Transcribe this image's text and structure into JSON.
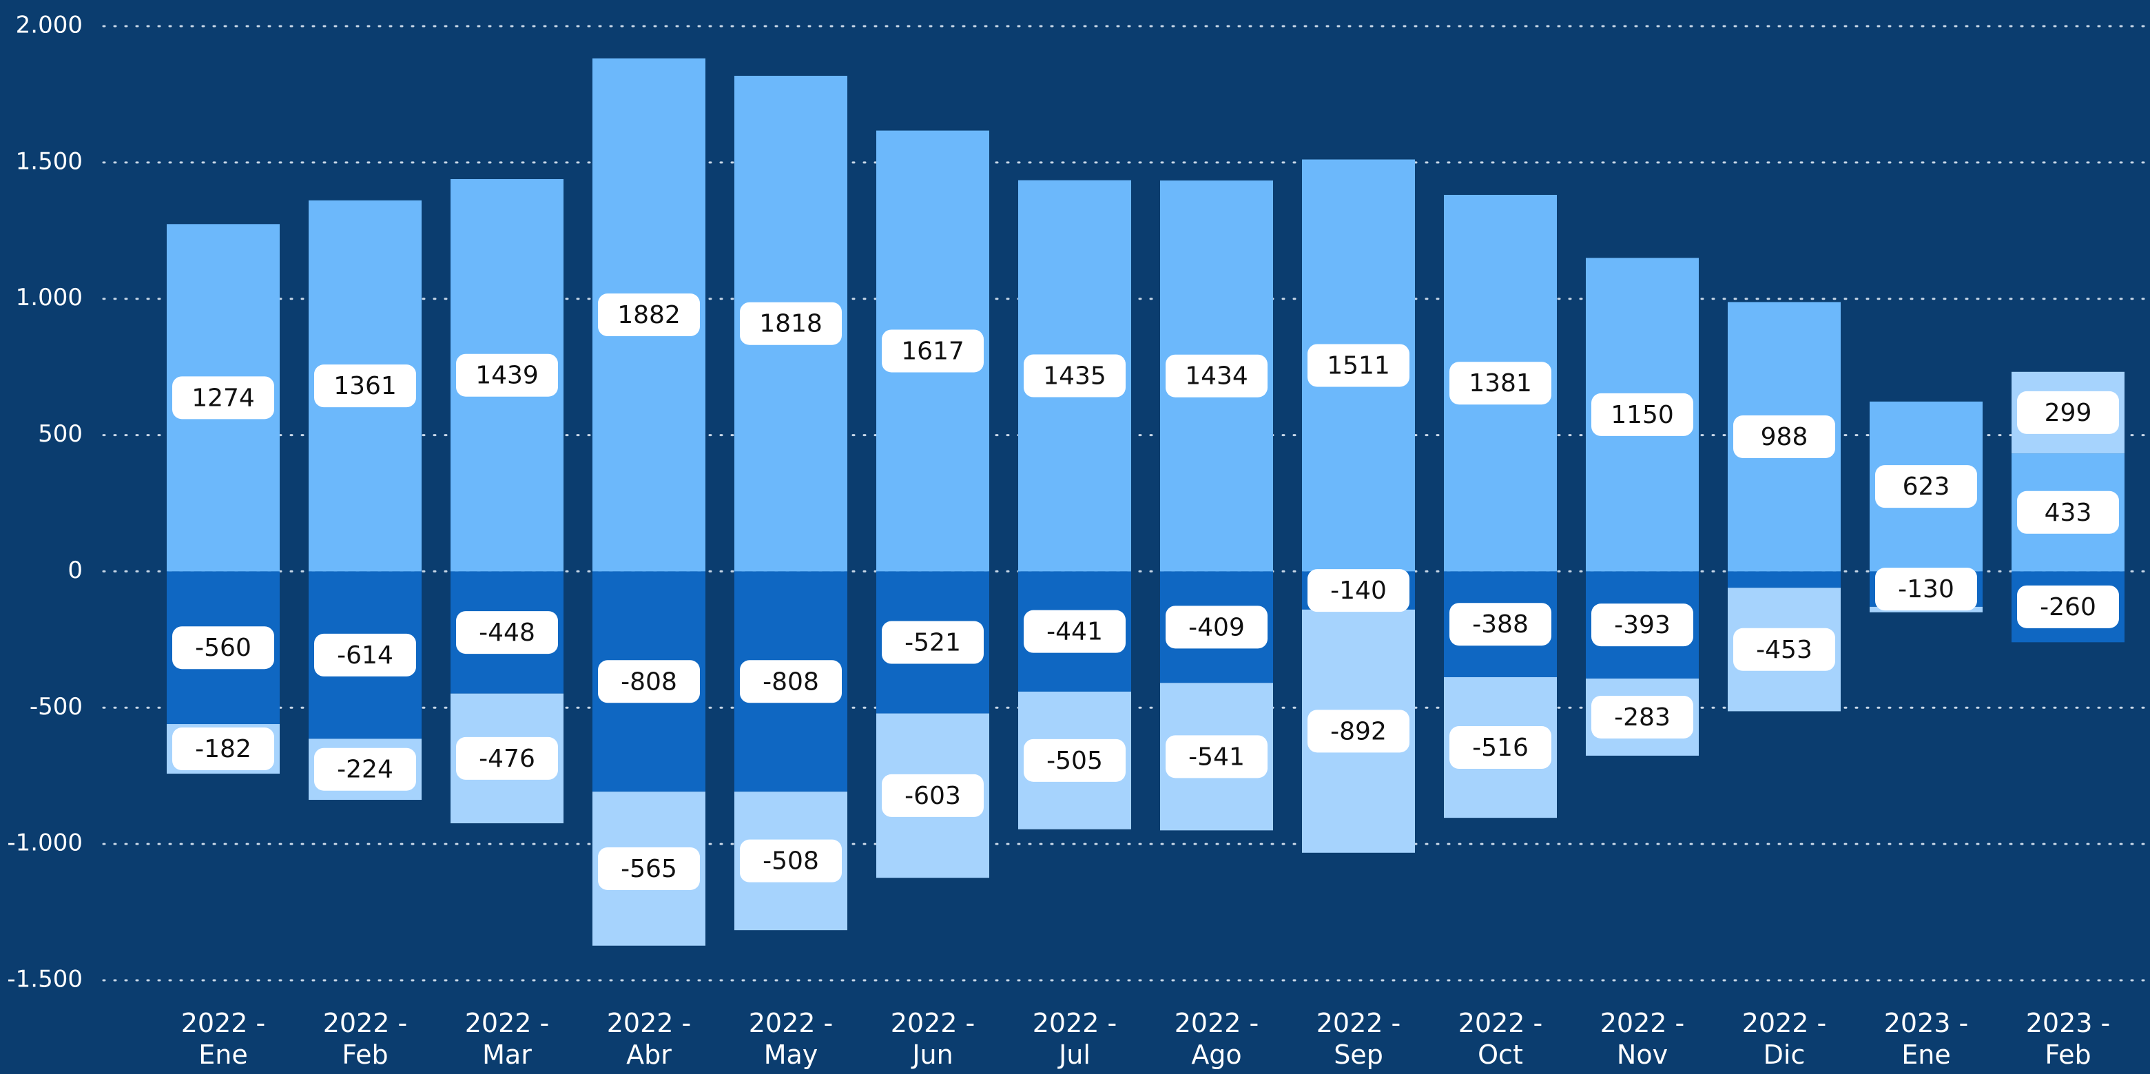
{
  "chart_data": {
    "type": "stacked_bar",
    "categories": [
      "2022 -\nEne",
      "2022 -\nFeb",
      "2022 -\nMar",
      "2022 -\nAbr",
      "2022 -\nMay",
      "2022 -\nJun",
      "2022 -\nJul",
      "2022 -\nAgo",
      "2022 -\nSep",
      "2022 -\nOct",
      "2022 -\nNov",
      "2022 -\nDic",
      "2023 -\nEne",
      "2023 -\nFeb"
    ],
    "series": [
      {
        "color": "#6cb8fb",
        "values": [
          1274,
          1361,
          1439,
          1882,
          1818,
          1617,
          1435,
          1434,
          1511,
          1381,
          1150,
          988,
          623,
          433
        ]
      },
      {
        "color": "#a6d3fd",
        "values": [
          null,
          null,
          null,
          null,
          null,
          null,
          null,
          null,
          null,
          null,
          null,
          null,
          null,
          299
        ]
      },
      {
        "color": "#0f67c2",
        "values": [
          -560,
          -614,
          -448,
          -808,
          -808,
          -521,
          -441,
          -409,
          -140,
          -388,
          -393,
          -60,
          -130,
          -260
        ]
      },
      {
        "color": "#a6d3fd",
        "values": [
          -182,
          -224,
          -476,
          -565,
          -508,
          -603,
          -505,
          -541,
          -892,
          -516,
          -283,
          -453,
          -20,
          null
        ]
      }
    ],
    "ylim": [
      -1500,
      2000
    ],
    "yticks": [
      {
        "value": -1500,
        "label": "-1.500"
      },
      {
        "value": -1000,
        "label": "-1.000"
      },
      -500,
      0,
      500,
      {
        "value": 1000,
        "label": "1.000"
      },
      {
        "value": 1500,
        "label": "1.500"
      },
      {
        "value": 2000,
        "label": "2.000"
      }
    ],
    "grid": true
  }
}
